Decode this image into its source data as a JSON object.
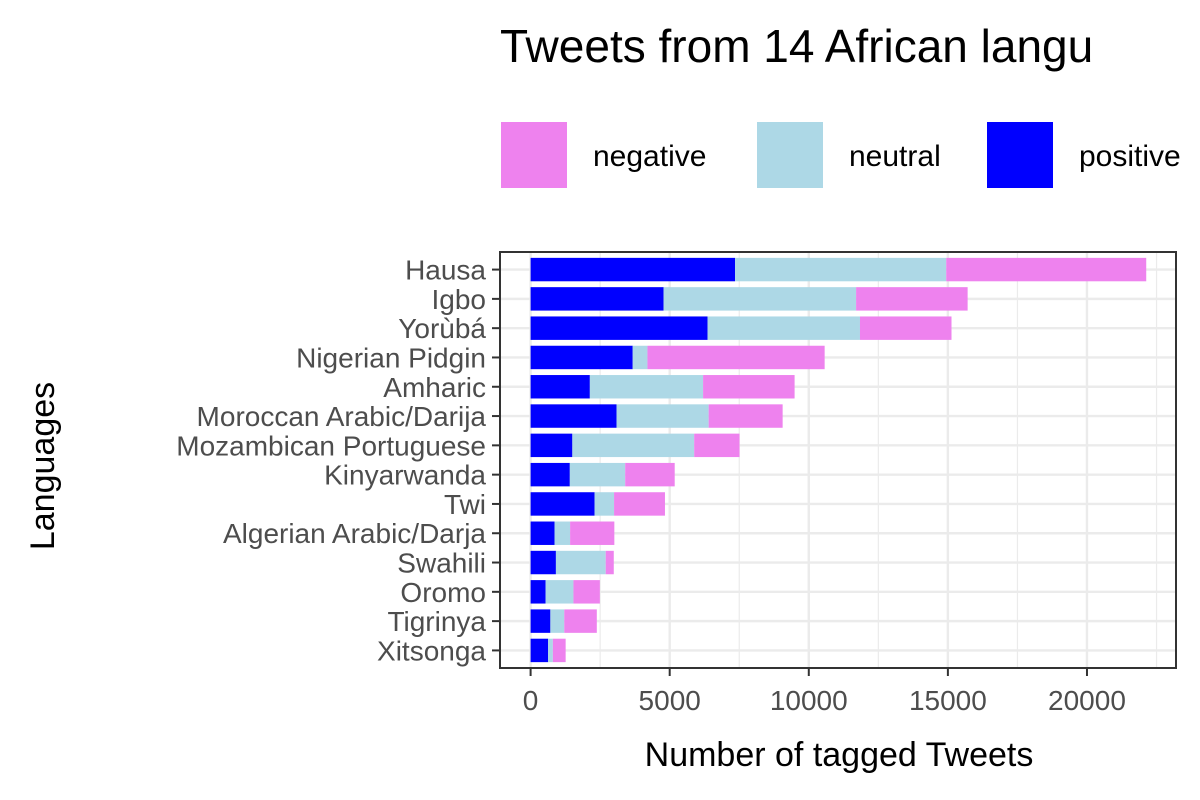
{
  "chart_data": {
    "type": "bar",
    "orientation": "horizontal",
    "stacked": true,
    "title": "Tweets from 14 African langu",
    "xlabel": "Number of tagged Tweets",
    "ylabel": "Languages",
    "xlim": [
      -1100,
      23200
    ],
    "x_ticks": [
      0,
      5000,
      10000,
      15000,
      20000
    ],
    "x_tick_labels": [
      "0",
      "5000",
      "10000",
      "15000",
      "20000"
    ],
    "grid": true,
    "legend_position": "top",
    "categories": [
      "Hausa",
      "Igbo",
      "Yorùbá",
      "Nigerian Pidgin",
      "Amharic",
      "Moroccan Arabic/Darija",
      "Mozambican Portuguese",
      "Kinyarwanda",
      "Twi",
      "Algerian Arabic/Darja",
      "Swahili",
      "Oromo",
      "Tigrinya",
      "Xitsonga"
    ],
    "series": [
      {
        "name": "positive",
        "color": "#0000ff",
        "values": [
          7350,
          4780,
          6360,
          3670,
          2130,
          3090,
          1500,
          1410,
          2300,
          860,
          910,
          540,
          710,
          630
        ]
      },
      {
        "name": "neutral",
        "color": "#add8e6",
        "values": [
          7590,
          6920,
          5480,
          530,
          4070,
          3310,
          4380,
          1990,
          700,
          560,
          1790,
          1000,
          500,
          170
        ]
      },
      {
        "name": "negative",
        "color": "#ee82ee",
        "values": [
          7190,
          4010,
          3290,
          6370,
          3290,
          2660,
          1630,
          1780,
          1830,
          1590,
          290,
          950,
          1170,
          460
        ]
      }
    ],
    "legend": [
      {
        "name": "negative",
        "color": "#ee82ee"
      },
      {
        "name": "neutral",
        "color": "#add8e6"
      },
      {
        "name": "positive",
        "color": "#0000ff"
      }
    ]
  }
}
